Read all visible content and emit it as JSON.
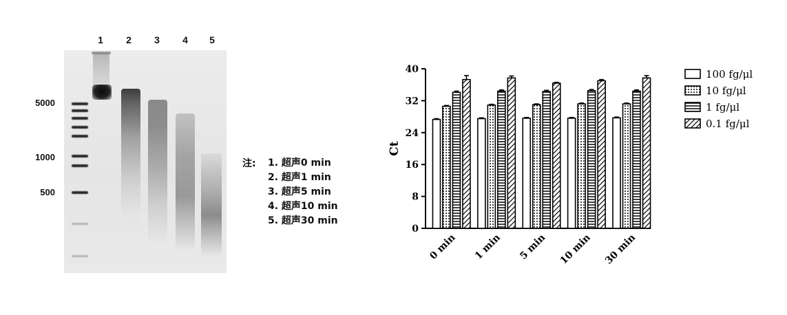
{
  "gel": {
    "lanes": [
      "1",
      "2",
      "3",
      "4",
      "5"
    ],
    "markers": [
      "5000",
      "1000",
      "500"
    ]
  },
  "note": {
    "prefix": "注:",
    "items": [
      "1. 超声0 min",
      "2. 超声1 min",
      "3. 超声5 min",
      "4. 超声10 min",
      "5. 超声30 min"
    ]
  },
  "chart_data": {
    "type": "bar",
    "categories": [
      "0 min",
      "1 min",
      "5 min",
      "10 min",
      "30 min"
    ],
    "series": [
      {
        "name": "100 fg/μl",
        "values": [
          27.3,
          27.5,
          27.6,
          27.6,
          27.7
        ],
        "errors": [
          0.2,
          0.2,
          0.2,
          0.2,
          0.2
        ]
      },
      {
        "name": "10 fg/μl",
        "values": [
          30.6,
          30.9,
          31.0,
          31.2,
          31.2
        ],
        "errors": [
          0.2,
          0.2,
          0.2,
          0.2,
          0.2
        ]
      },
      {
        "name": "1 fg/μl",
        "values": [
          34.1,
          34.4,
          34.3,
          34.5,
          34.4
        ],
        "errors": [
          0.3,
          0.3,
          0.3,
          0.3,
          0.3
        ]
      },
      {
        "name": "0.1 fg/μl",
        "values": [
          37.3,
          37.7,
          36.4,
          37.0,
          37.7
        ],
        "errors": [
          1.0,
          0.5,
          0.2,
          0.3,
          0.6
        ]
      }
    ],
    "xlabel": "",
    "ylabel": "Ct",
    "ylim": [
      0,
      40
    ],
    "yticks": [
      0,
      8,
      16,
      24,
      32,
      40
    ],
    "patterns": [
      "solid",
      "dots",
      "horizontal",
      "diagonal"
    ],
    "legend_position": "right",
    "grid": false
  }
}
